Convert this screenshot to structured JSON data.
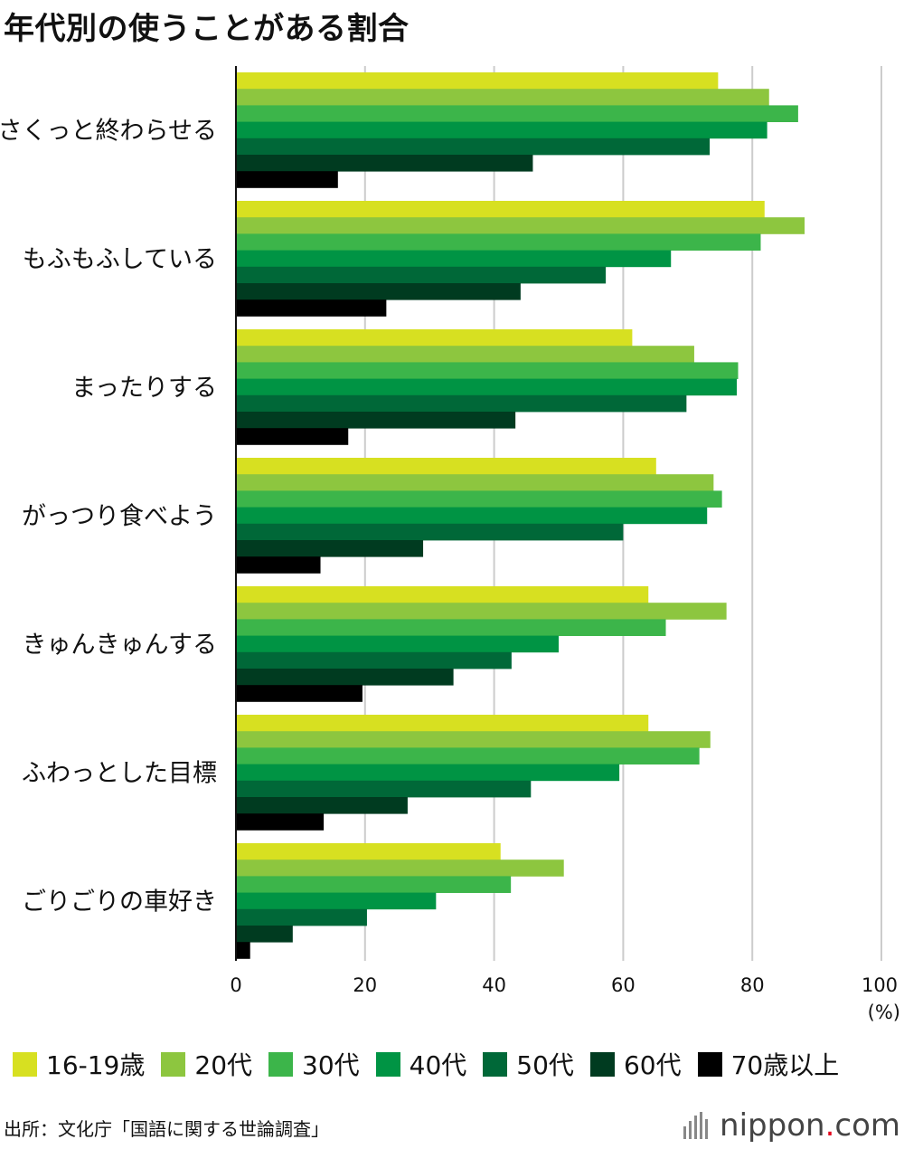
{
  "chart_data": {
    "type": "bar",
    "orientation": "horizontal",
    "title": "年代別の使うことがある割合",
    "unit": "(%)",
    "xlim": [
      0,
      100
    ],
    "xticks": [
      "0",
      "20",
      "40",
      "60",
      "80",
      "100"
    ],
    "grid": true,
    "legend_position": "bottom",
    "categories": [
      "さくっと終わらせる",
      "もふもふしている",
      "まったりする",
      "がっつり食べよう",
      "きゅんきゅんする",
      "ふわっとした目標",
      "ごりごりの車好き"
    ],
    "series": [
      {
        "name": "16-19歳",
        "color": "#d7e021",
        "values": [
          74.7,
          81.9,
          61.4,
          65.1,
          63.9,
          63.9,
          41.0
        ]
      },
      {
        "name": "20代",
        "color": "#8dc63f",
        "values": [
          82.6,
          88.1,
          71.0,
          74.0,
          76.0,
          73.5,
          50.8
        ]
      },
      {
        "name": "30代",
        "color": "#3cb54a",
        "values": [
          87.1,
          81.3,
          77.8,
          75.3,
          66.6,
          71.8,
          42.6
        ]
      },
      {
        "name": "40代",
        "color": "#009444",
        "values": [
          82.3,
          67.4,
          77.6,
          73.0,
          50.0,
          59.4,
          31.0
        ]
      },
      {
        "name": "50代",
        "color": "#006838",
        "values": [
          73.4,
          57.3,
          69.8,
          60.0,
          42.7,
          45.7,
          20.3
        ]
      },
      {
        "name": "60代",
        "color": "#003b20",
        "values": [
          46.0,
          44.1,
          43.3,
          29.0,
          33.7,
          26.6,
          8.8
        ]
      },
      {
        "name": "70歳以上",
        "color": "#000000",
        "values": [
          15.8,
          23.3,
          17.4,
          13.1,
          19.6,
          13.6,
          2.2
        ]
      }
    ]
  },
  "source": "出所：文化庁「国語に関する世論調査」",
  "logo": {
    "name": "nippon",
    "dot": ".",
    "suffix": "com"
  }
}
